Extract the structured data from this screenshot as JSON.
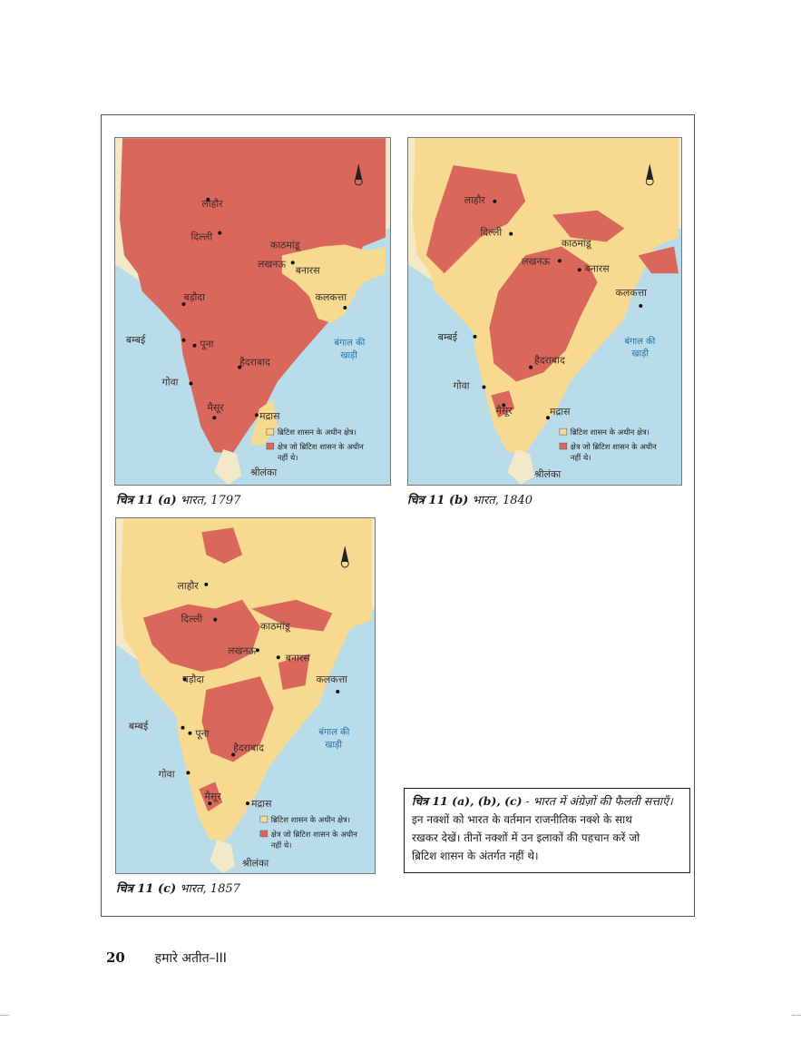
{
  "maps": [
    {
      "id": "a",
      "caption_prefix": "चित्र 11 (a)",
      "caption_text": "भारत, 1797",
      "places": [
        "लाहौर",
        "दिल्ली",
        "काठमांडू",
        "लखनऊ",
        "बनारस",
        "कलकत्ता",
        "बड़ौदा",
        "बम्बई",
        "पूना",
        "हैदराबाद",
        "गोवा",
        "मैसूर",
        "मद्रास",
        "श्रीलंका"
      ],
      "sea_label": [
        "बंगाल की",
        "खाड़ी"
      ],
      "legend": [
        "ब्रिटिश शासन के अधीन क्षेत्र।",
        "क्षेत्र जो ब्रिटिश शासन के अधीन",
        "नहीं थे।"
      ]
    },
    {
      "id": "b",
      "caption_prefix": "चित्र 11 (b)",
      "caption_text": "भारत, 1840",
      "places": [
        "लाहौर",
        "दिल्ली",
        "काठमांडू",
        "लखनऊ",
        "बनारस",
        "कलकत्ता",
        "बम्बई",
        "हैदराबाद",
        "गोवा",
        "मैसूर",
        "मद्रास",
        "श्रीलंका"
      ],
      "sea_label": [
        "बंगाल की",
        "खाड़ी"
      ],
      "legend": [
        "ब्रिटिश शासन के अधीन क्षेत्र।",
        "क्षेत्र जो ब्रिटिश शासन के अधीन",
        "नहीं थे।"
      ]
    },
    {
      "id": "c",
      "caption_prefix": "चित्र 11 (c)",
      "caption_text": "भारत, 1857",
      "places": [
        "लाहौर",
        "दिल्ली",
        "काठमांडू",
        "लखनऊ",
        "बनारस",
        "कलकत्ता",
        "बड़ौदा",
        "बम्बई",
        "पूना",
        "हैदराबाद",
        "गोवा",
        "मैसूर",
        "मद्रास",
        "श्रीलंका"
      ],
      "sea_label": [
        "बंगाल की",
        "खाड़ी"
      ],
      "legend": [
        "ब्रिटिश शासन के अधीन क्षेत्र।",
        "क्षेत्र जो ब्रिटिश शासन के अधीन",
        "नहीं थे।"
      ]
    }
  ],
  "colors": {
    "not_british": "#d9685a",
    "british": "#f7d98f",
    "sea": "#b9dcea",
    "land_outside": "#f2e9c8"
  },
  "question": {
    "title_prefix": "चित्र 11 (a), (b), (c)",
    "title_text": "- भारत में अंग्रेज़ों की फैलती सत्ताएँ।",
    "lines": [
      "इन नक्शों को भारत के वर्तमान राजनीतिक नक्शे के साथ",
      "रखकर देखें। तीनों नक्शों में उन इलाकों की पहचान करें जो",
      "ब्रिटिश शासन के अंतर्गत नहीं थे।"
    ]
  },
  "footer": {
    "page_number": "20",
    "book_title": "हमारे अतीत–III"
  }
}
